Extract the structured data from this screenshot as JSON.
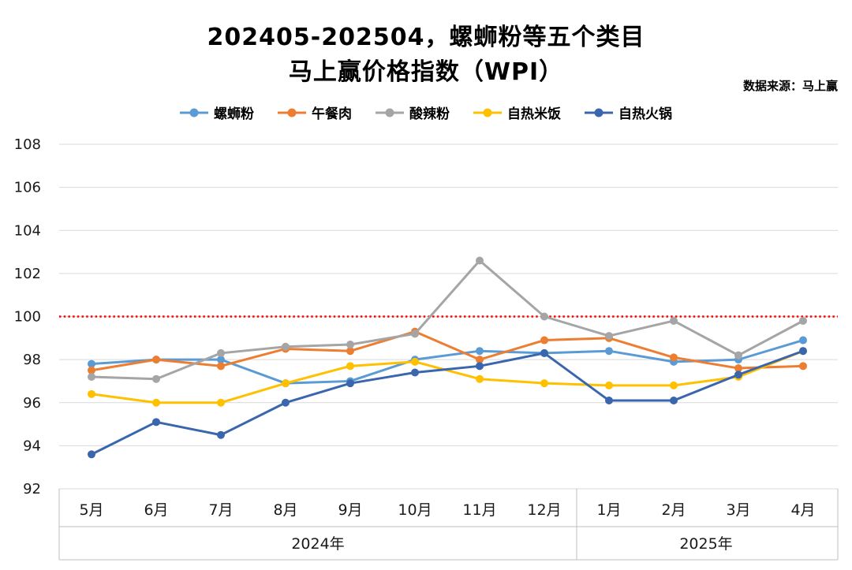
{
  "header": {
    "title_line1": "202405-202504，螺蛳粉等五个类目",
    "title_line2": "马上赢价格指数（WPI）",
    "source_note": "数据来源：马上赢"
  },
  "chart_data": {
    "type": "line",
    "title": "202405-202504，螺蛳粉等五个类目 马上赢价格指数（WPI）",
    "x_categories": [
      "5月",
      "6月",
      "7月",
      "8月",
      "9月",
      "10月",
      "11月",
      "12月",
      "1月",
      "2月",
      "3月",
      "4月"
    ],
    "x_groups": [
      {
        "label": "2024年",
        "span": [
          0,
          7
        ]
      },
      {
        "label": "2025年",
        "span": [
          8,
          11
        ]
      }
    ],
    "ylim": [
      92,
      108
    ],
    "yticks": [
      92,
      94,
      96,
      98,
      100,
      102,
      104,
      106,
      108
    ],
    "grid": true,
    "legend_position": "top",
    "reference_line": {
      "value": 100,
      "color": "#FF0000",
      "style": "dotted"
    },
    "colors": {
      "grid": "#D9D9D9",
      "table_border": "#BFBFBF",
      "text": "#1a1a1a"
    },
    "series": [
      {
        "name": "螺蛳粉",
        "color": "#5B9BD5",
        "values": [
          97.8,
          98.0,
          98.0,
          96.9,
          97.0,
          98.0,
          98.4,
          98.3,
          98.4,
          97.9,
          98.0,
          98.9
        ]
      },
      {
        "name": "午餐肉",
        "color": "#ED7D31",
        "values": [
          97.5,
          98.0,
          97.7,
          98.5,
          98.4,
          99.3,
          98.0,
          98.9,
          99.0,
          98.1,
          97.6,
          97.7
        ]
      },
      {
        "name": "酸辣粉",
        "color": "#A5A5A5",
        "values": [
          97.2,
          97.1,
          98.3,
          98.6,
          98.7,
          99.2,
          102.6,
          100.0,
          99.1,
          99.8,
          98.2,
          99.8
        ]
      },
      {
        "name": "自热米饭",
        "color": "#FFC000",
        "values": [
          96.4,
          96.0,
          96.0,
          96.9,
          97.7,
          97.9,
          97.1,
          96.9,
          96.8,
          96.8,
          97.2,
          98.4
        ]
      },
      {
        "name": "自热火锅",
        "color": "#3A66AD",
        "values": [
          93.6,
          95.1,
          94.5,
          96.0,
          96.9,
          97.4,
          97.7,
          98.3,
          96.1,
          96.1,
          97.3,
          98.4
        ]
      }
    ]
  }
}
